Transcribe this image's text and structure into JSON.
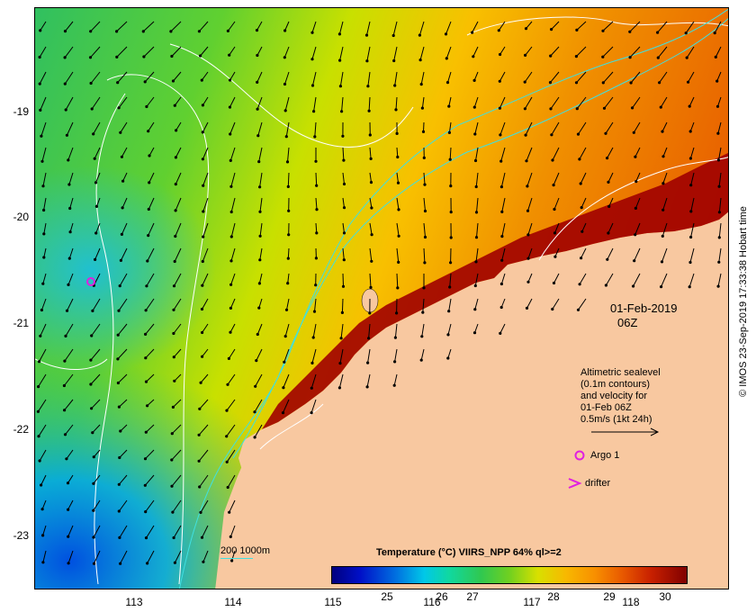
{
  "map": {
    "date_label_line1": "01-Feb-2019",
    "date_label_line2": "06Z",
    "y_axis_labels": [
      "-19",
      "-20",
      "-21",
      "-22",
      "-23"
    ],
    "x_axis_labels": [
      "113",
      "114",
      "115",
      "116",
      "117",
      "118"
    ],
    "altimetry_legend": [
      "Altimetric sealevel",
      "(0.1m contours)",
      "and velocity for",
      "01-Feb 06Z",
      "0.5m/s (1kt 24h)"
    ],
    "argo_label": "Argo 1",
    "drifter_label": "drifter",
    "contour_key_label": "200  1000m",
    "colorbar_title": "Temperature (°C) VIIRS_NPP 64% ql>=2",
    "colorbar_ticks": [
      "25",
      "26",
      "27",
      "28",
      "29",
      "30"
    ],
    "credit": "© IMOS 23-Sep-2019 17:33:38 Hobart time",
    "colors": {
      "land": "#f8c8a0",
      "warm": "#8b0000",
      "cool": "#00a0e0",
      "argo": "#e020e0",
      "drifter": "#e020e0",
      "contour": "#40e0e0"
    }
  }
}
